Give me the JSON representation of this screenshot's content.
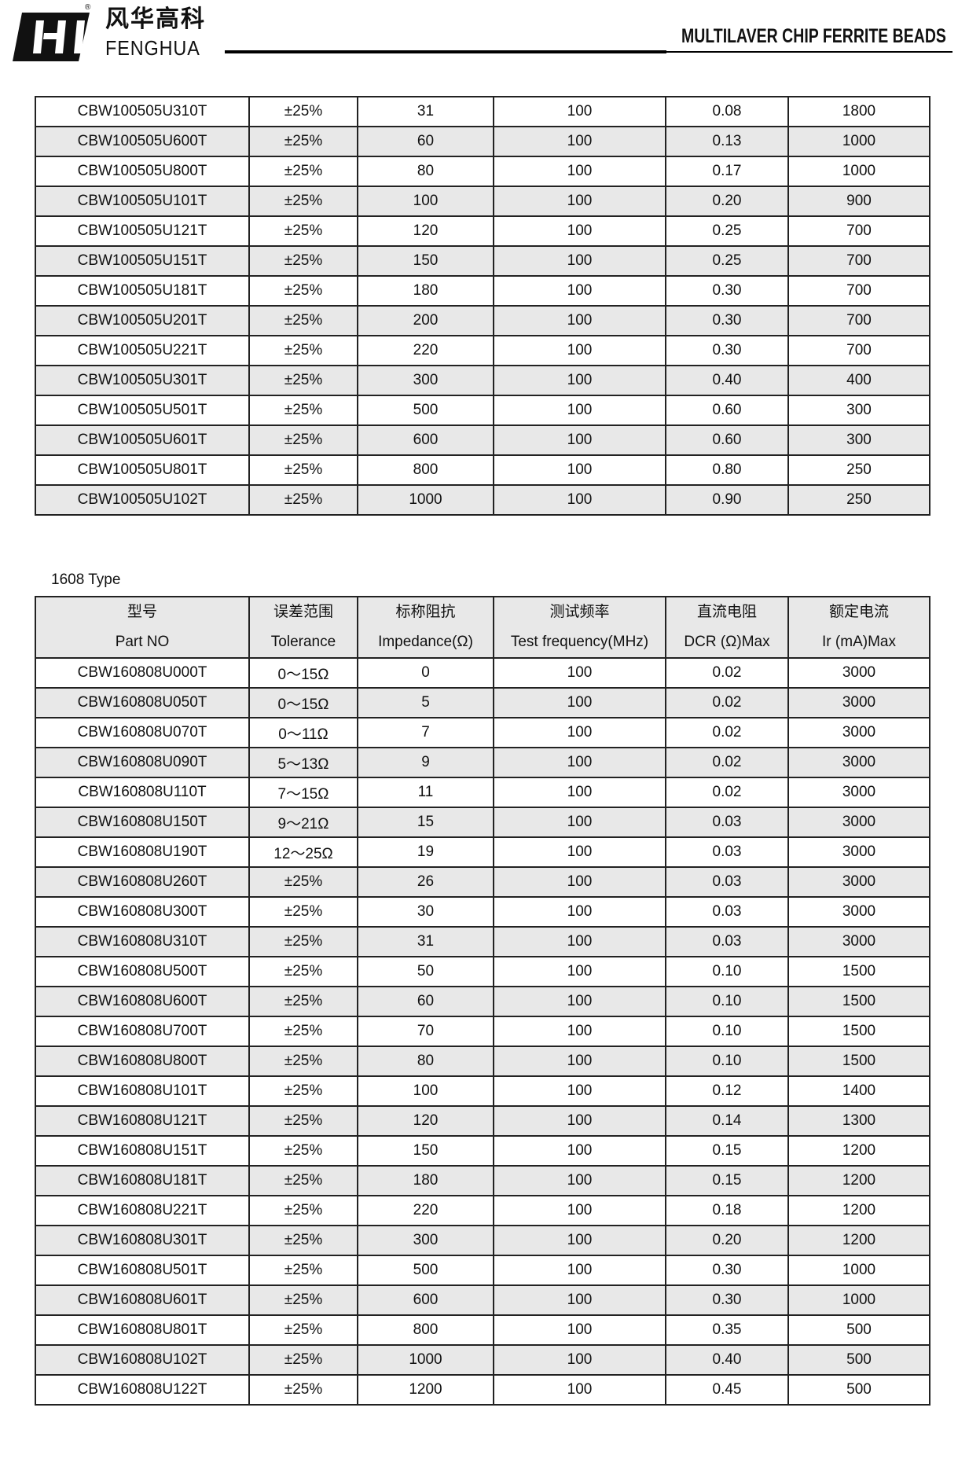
{
  "header": {
    "brand_cn": "风华高科",
    "brand_en": "FENGHUA",
    "registered": "®",
    "title": "MULTILAVER CHIP FERRITE BEADS"
  },
  "table1": {
    "rows": [
      [
        "CBW100505U310T",
        "±25%",
        "31",
        "100",
        "0.08",
        "1800"
      ],
      [
        "CBW100505U600T",
        "±25%",
        "60",
        "100",
        "0.13",
        "1000"
      ],
      [
        "CBW100505U800T",
        "±25%",
        "80",
        "100",
        "0.17",
        "1000"
      ],
      [
        "CBW100505U101T",
        "±25%",
        "100",
        "100",
        "0.20",
        "900"
      ],
      [
        "CBW100505U121T",
        "±25%",
        "120",
        "100",
        "0.25",
        "700"
      ],
      [
        "CBW100505U151T",
        "±25%",
        "150",
        "100",
        "0.25",
        "700"
      ],
      [
        "CBW100505U181T",
        "±25%",
        "180",
        "100",
        "0.30",
        "700"
      ],
      [
        "CBW100505U201T",
        "±25%",
        "200",
        "100",
        "0.30",
        "700"
      ],
      [
        "CBW100505U221T",
        "±25%",
        "220",
        "100",
        "0.30",
        "700"
      ],
      [
        "CBW100505U301T",
        "±25%",
        "300",
        "100",
        "0.40",
        "400"
      ],
      [
        "CBW100505U501T",
        "±25%",
        "500",
        "100",
        "0.60",
        "300"
      ],
      [
        "CBW100505U601T",
        "±25%",
        "600",
        "100",
        "0.60",
        "300"
      ],
      [
        "CBW100505U801T",
        "±25%",
        "800",
        "100",
        "0.80",
        "250"
      ],
      [
        "CBW100505U102T",
        "±25%",
        "1000",
        "100",
        "0.90",
        "250"
      ]
    ]
  },
  "table2": {
    "section_label": "1608 Type",
    "headers_cn": [
      "型号",
      "误差范围",
      "标称阻抗",
      "测试频率",
      "直流电阻",
      "额定电流"
    ],
    "headers_en": [
      "Part NO",
      "Tolerance",
      "Impedance(Ω)",
      "Test frequency(MHz)",
      "DCR (Ω)Max",
      "Ir (mA)Max"
    ],
    "rows": [
      [
        "CBW160808U000T",
        "0～15Ω",
        "0",
        "100",
        "0.02",
        "3000"
      ],
      [
        "CBW160808U050T",
        "0～15Ω",
        "5",
        "100",
        "0.02",
        "3000"
      ],
      [
        "CBW160808U070T",
        "0～11Ω",
        "7",
        "100",
        "0.02",
        "3000"
      ],
      [
        "CBW160808U090T",
        "5～13Ω",
        "9",
        "100",
        "0.02",
        "3000"
      ],
      [
        "CBW160808U110T",
        "7～15Ω",
        "11",
        "100",
        "0.02",
        "3000"
      ],
      [
        "CBW160808U150T",
        "9～21Ω",
        "15",
        "100",
        "0.03",
        "3000"
      ],
      [
        "CBW160808U190T",
        "12～25Ω",
        "19",
        "100",
        "0.03",
        "3000"
      ],
      [
        "CBW160808U260T",
        "±25%",
        "26",
        "100",
        "0.03",
        "3000"
      ],
      [
        "CBW160808U300T",
        "±25%",
        "30",
        "100",
        "0.03",
        "3000"
      ],
      [
        "CBW160808U310T",
        "±25%",
        "31",
        "100",
        "0.03",
        "3000"
      ],
      [
        "CBW160808U500T",
        "±25%",
        "50",
        "100",
        "0.10",
        "1500"
      ],
      [
        "CBW160808U600T",
        "±25%",
        "60",
        "100",
        "0.10",
        "1500"
      ],
      [
        "CBW160808U700T",
        "±25%",
        "70",
        "100",
        "0.10",
        "1500"
      ],
      [
        "CBW160808U800T",
        "±25%",
        "80",
        "100",
        "0.10",
        "1500"
      ],
      [
        "CBW160808U101T",
        "±25%",
        "100",
        "100",
        "0.12",
        "1400"
      ],
      [
        "CBW160808U121T",
        "±25%",
        "120",
        "100",
        "0.14",
        "1300"
      ],
      [
        "CBW160808U151T",
        "±25%",
        "150",
        "100",
        "0.15",
        "1200"
      ],
      [
        "CBW160808U181T",
        "±25%",
        "180",
        "100",
        "0.15",
        "1200"
      ],
      [
        "CBW160808U221T",
        "±25%",
        "220",
        "100",
        "0.18",
        "1200"
      ],
      [
        "CBW160808U301T",
        "±25%",
        "300",
        "100",
        "0.20",
        "1200"
      ],
      [
        "CBW160808U501T",
        "±25%",
        "500",
        "100",
        "0.30",
        "1000"
      ],
      [
        "CBW160808U601T",
        "±25%",
        "600",
        "100",
        "0.30",
        "1000"
      ],
      [
        "CBW160808U801T",
        "±25%",
        "800",
        "100",
        "0.35",
        "500"
      ],
      [
        "CBW160808U102T",
        "±25%",
        "1000",
        "100",
        "0.40",
        "500"
      ],
      [
        "CBW160808U122T",
        "±25%",
        "1200",
        "100",
        "0.45",
        "500"
      ]
    ]
  }
}
